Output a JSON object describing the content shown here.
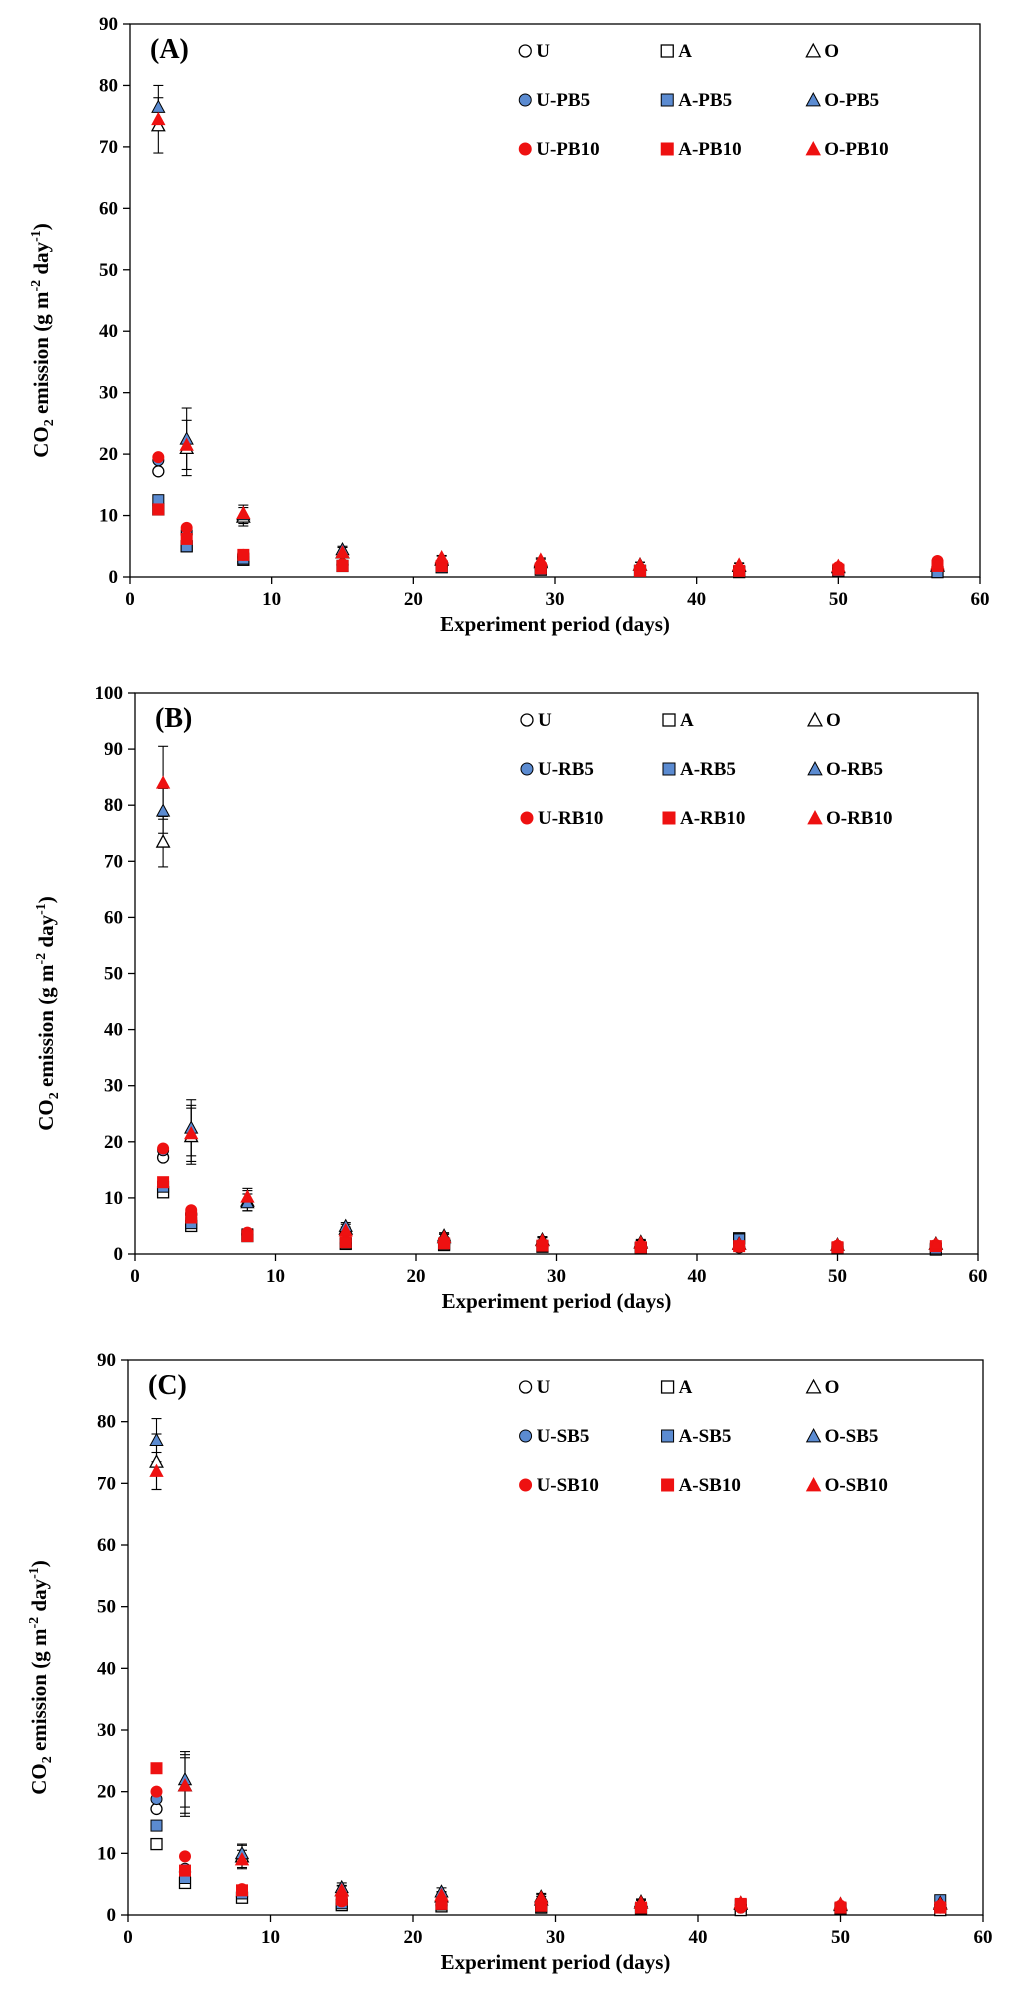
{
  "colors": {
    "blue": "#5b8bd1",
    "red": "#ee1111",
    "open_fill": "#ffffff",
    "edge": "#000000"
  },
  "chart_data": [
    {
      "type": "scatter",
      "panel_label": "(A)",
      "xlabel": "Experiment period (days)",
      "ylabel": {
        "prefix": "CO",
        "sub": "2",
        "mid": " emission (g m",
        "sup1": "-2",
        "mid2": " day",
        "sup2": "-1",
        "suffix": ")"
      },
      "xlim": [
        0,
        60
      ],
      "ylim": [
        0,
        90
      ],
      "xticks": [
        0,
        10,
        20,
        30,
        40,
        50,
        60
      ],
      "yticks": [
        0,
        10,
        20,
        30,
        40,
        50,
        60,
        70,
        80,
        90
      ],
      "grid": false,
      "legend_position": "top-right",
      "x": [
        2,
        4,
        8,
        15,
        22,
        29,
        36,
        43,
        50,
        57
      ],
      "series": [
        {
          "name": "U",
          "marker": "circle",
          "color": "open",
          "values": [
            17.2,
            7.0,
            3.2,
            2.0,
            1.8,
            1.4,
            1.2,
            1.0,
            1.4,
            1.0
          ]
        },
        {
          "name": "A",
          "marker": "square",
          "color": "open",
          "values": [
            11.0,
            5.0,
            2.8,
            1.8,
            1.6,
            1.2,
            1.0,
            0.8,
            1.0,
            0.8
          ]
        },
        {
          "name": "O",
          "marker": "triangle",
          "color": "open",
          "values": [
            73.5,
            21.0,
            9.8,
            4.0,
            2.8,
            2.4,
            2.0,
            1.8,
            1.6,
            1.8
          ],
          "error": [
            4.5,
            4.5,
            1.5,
            0.8,
            0.6,
            0.5,
            0.4,
            0.4,
            0.3,
            0.3
          ]
        },
        {
          "name": "U-PB5",
          "marker": "circle",
          "color": "blue",
          "values": [
            19.0,
            7.5,
            3.4,
            2.0,
            1.9,
            1.4,
            1.2,
            1.1,
            1.4,
            1.8
          ]
        },
        {
          "name": "A-PB5",
          "marker": "square",
          "color": "blue",
          "values": [
            12.5,
            5.0,
            3.0,
            1.8,
            1.6,
            1.2,
            1.0,
            0.9,
            1.0,
            0.8
          ]
        },
        {
          "name": "O-PB5",
          "marker": "triangle",
          "color": "blue",
          "values": [
            76.5,
            22.5,
            10.2,
            4.5,
            3.0,
            2.6,
            2.0,
            1.9,
            1.7,
            2.0
          ],
          "error": [
            3.5,
            5.0,
            1.5,
            0.5,
            0.5,
            0.5,
            0.4,
            0.4,
            0.3,
            0.3
          ]
        },
        {
          "name": "U-PB10",
          "marker": "circle",
          "color": "red",
          "values": [
            19.5,
            8.0,
            3.6,
            2.1,
            2.0,
            1.6,
            1.3,
            1.1,
            1.6,
            2.6
          ]
        },
        {
          "name": "A-PB10",
          "marker": "square",
          "color": "red",
          "values": [
            11.0,
            6.2,
            3.6,
            1.8,
            1.8,
            1.4,
            1.0,
            1.0,
            1.2,
            1.8
          ]
        },
        {
          "name": "O-PB10",
          "marker": "triangle",
          "color": "red",
          "values": [
            74.5,
            21.5,
            10.4,
            4.0,
            3.2,
            2.8,
            2.0,
            2.0,
            1.8,
            2.2
          ]
        }
      ],
      "legend_rows": [
        [
          "U",
          "A",
          "O"
        ],
        [
          "U-PB5",
          "A-PB5",
          "O-PB5"
        ],
        [
          "U-PB10",
          "A-PB10",
          "O-PB10"
        ]
      ]
    },
    {
      "type": "scatter",
      "panel_label": "(B)",
      "xlabel": "Experiment period (days)",
      "ylabel": {
        "prefix": "CO",
        "sub": "2",
        "mid": " emission (g m",
        "sup1": "-2",
        "mid2": " day",
        "sup2": "-1",
        "suffix": ")"
      },
      "xlim": [
        0,
        60
      ],
      "ylim": [
        0,
        100
      ],
      "xticks": [
        0,
        10,
        20,
        30,
        40,
        50,
        60
      ],
      "yticks": [
        0,
        10,
        20,
        30,
        40,
        50,
        60,
        70,
        80,
        90,
        100
      ],
      "grid": false,
      "legend_position": "top-right",
      "x": [
        2,
        4,
        8,
        15,
        22,
        29,
        36,
        43,
        50,
        57
      ],
      "series": [
        {
          "name": "U",
          "marker": "circle",
          "color": "open",
          "values": [
            17.2,
            7.0,
            3.5,
            2.0,
            1.8,
            1.5,
            1.2,
            1.2,
            1.2,
            1.0
          ]
        },
        {
          "name": "A",
          "marker": "square",
          "color": "open",
          "values": [
            11.0,
            5.0,
            3.2,
            1.8,
            1.6,
            1.3,
            1.0,
            2.8,
            1.0,
            0.8
          ]
        },
        {
          "name": "O",
          "marker": "triangle",
          "color": "open",
          "values": [
            73.5,
            21.0,
            9.5,
            4.5,
            3.0,
            2.5,
            2.0,
            1.8,
            1.6,
            1.8
          ],
          "error": [
            4.5,
            5.0,
            1.8,
            0.8,
            0.6,
            0.5,
            0.4,
            0.4,
            0.3,
            0.3
          ]
        },
        {
          "name": "U-RB5",
          "marker": "circle",
          "color": "blue",
          "values": [
            18.5,
            7.2,
            3.6,
            2.1,
            2.0,
            1.6,
            1.3,
            1.2,
            1.3,
            1.2
          ]
        },
        {
          "name": "A-RB5",
          "marker": "square",
          "color": "blue",
          "values": [
            12.0,
            5.5,
            3.5,
            2.0,
            1.8,
            1.4,
            1.1,
            2.6,
            1.1,
            1.0
          ]
        },
        {
          "name": "O-RB5",
          "marker": "triangle",
          "color": "blue",
          "values": [
            79.0,
            22.5,
            9.2,
            5.0,
            3.3,
            2.6,
            2.2,
            1.9,
            1.7,
            1.9
          ],
          "error": [
            4.0,
            5.0,
            1.5,
            0.6,
            0.5,
            0.5,
            0.4,
            0.4,
            0.3,
            0.3
          ]
        },
        {
          "name": "U-RB10",
          "marker": "circle",
          "color": "red",
          "values": [
            18.8,
            7.8,
            3.8,
            2.3,
            2.1,
            1.7,
            1.4,
            1.3,
            1.5,
            1.6
          ]
        },
        {
          "name": "A-RB10",
          "marker": "square",
          "color": "red",
          "values": [
            12.8,
            6.5,
            3.2,
            2.1,
            1.9,
            1.5,
            1.2,
            1.4,
            1.2,
            1.4
          ]
        },
        {
          "name": "O-RB10",
          "marker": "triangle",
          "color": "red",
          "values": [
            84.0,
            21.5,
            10.2,
            4.2,
            3.0,
            2.4,
            2.0,
            1.8,
            1.6,
            1.8
          ],
          "error": [
            6.5,
            5.0,
            1.5,
            0.6,
            0.5,
            0.5,
            0.4,
            0.4,
            0.3,
            0.3
          ]
        }
      ],
      "legend_rows": [
        [
          "U",
          "A",
          "O"
        ],
        [
          "U-RB5",
          "A-RB5",
          "O-RB5"
        ],
        [
          "U-RB10",
          "A-RB10",
          "O-RB10"
        ]
      ]
    },
    {
      "type": "scatter",
      "panel_label": "(C)",
      "xlabel": "Experiment period (days)",
      "ylabel": {
        "prefix": "CO",
        "sub": "2",
        "mid": " emission (g m",
        "sup1": "-2",
        "mid2": " day",
        "sup2": "-1",
        "suffix": ")"
      },
      "xlim": [
        0,
        60
      ],
      "ylim": [
        0,
        90
      ],
      "xticks": [
        0,
        10,
        20,
        30,
        40,
        50,
        60
      ],
      "yticks": [
        0,
        10,
        20,
        30,
        40,
        50,
        60,
        70,
        80,
        90
      ],
      "grid": false,
      "legend_position": "top-right",
      "x": [
        2,
        4,
        8,
        15,
        22,
        29,
        36,
        43,
        50,
        57
      ],
      "series": [
        {
          "name": "U",
          "marker": "circle",
          "color": "open",
          "values": [
            17.2,
            7.0,
            3.0,
            1.8,
            1.6,
            1.4,
            1.2,
            1.0,
            1.2,
            1.0
          ]
        },
        {
          "name": "A",
          "marker": "square",
          "color": "open",
          "values": [
            11.5,
            5.2,
            2.8,
            1.6,
            1.4,
            1.2,
            1.0,
            0.8,
            1.0,
            0.8
          ]
        },
        {
          "name": "O",
          "marker": "triangle",
          "color": "open",
          "values": [
            73.5,
            21.0,
            9.5,
            4.0,
            3.0,
            2.5,
            2.0,
            1.8,
            1.6,
            1.8
          ],
          "error": [
            4.5,
            5.0,
            1.8,
            0.8,
            0.6,
            0.5,
            0.4,
            0.4,
            0.3,
            0.3
          ]
        },
        {
          "name": "U-SB5",
          "marker": "circle",
          "color": "blue",
          "values": [
            18.8,
            7.5,
            3.6,
            2.0,
            1.9,
            1.5,
            1.3,
            1.2,
            1.3,
            1.2
          ]
        },
        {
          "name": "A-SB5",
          "marker": "square",
          "color": "blue",
          "values": [
            14.5,
            6.0,
            3.5,
            1.9,
            1.7,
            1.4,
            1.1,
            1.6,
            1.1,
            2.4
          ]
        },
        {
          "name": "O-SB5",
          "marker": "triangle",
          "color": "blue",
          "values": [
            77.0,
            22.0,
            10.0,
            4.5,
            3.8,
            3.0,
            2.2,
            2.0,
            1.8,
            2.0
          ],
          "error": [
            3.5,
            4.5,
            1.5,
            0.7,
            0.6,
            0.5,
            0.4,
            0.4,
            0.3,
            0.3
          ]
        },
        {
          "name": "U-SB10",
          "marker": "circle",
          "color": "red",
          "values": [
            20.0,
            9.5,
            4.2,
            2.2,
            2.0,
            1.6,
            1.3,
            1.2,
            1.5,
            1.5
          ]
        },
        {
          "name": "A-SB10",
          "marker": "square",
          "color": "red",
          "values": [
            23.8,
            7.2,
            4.0,
            2.5,
            1.8,
            1.5,
            1.2,
            1.8,
            1.2,
            1.2
          ]
        },
        {
          "name": "O-SB10",
          "marker": "triangle",
          "color": "red",
          "values": [
            72.0,
            21.0,
            9.0,
            4.0,
            3.2,
            2.8,
            2.0,
            2.0,
            1.8,
            1.8
          ],
          "error": [
            3.0,
            4.5,
            1.5,
            0.7,
            0.6,
            0.5,
            0.4,
            0.4,
            0.3,
            0.3
          ]
        }
      ],
      "legend_rows": [
        [
          "U",
          "A",
          "O"
        ],
        [
          "U-SB5",
          "A-SB5",
          "O-SB5"
        ],
        [
          "U-SB10",
          "A-SB10",
          "O-SB10"
        ]
      ]
    }
  ]
}
